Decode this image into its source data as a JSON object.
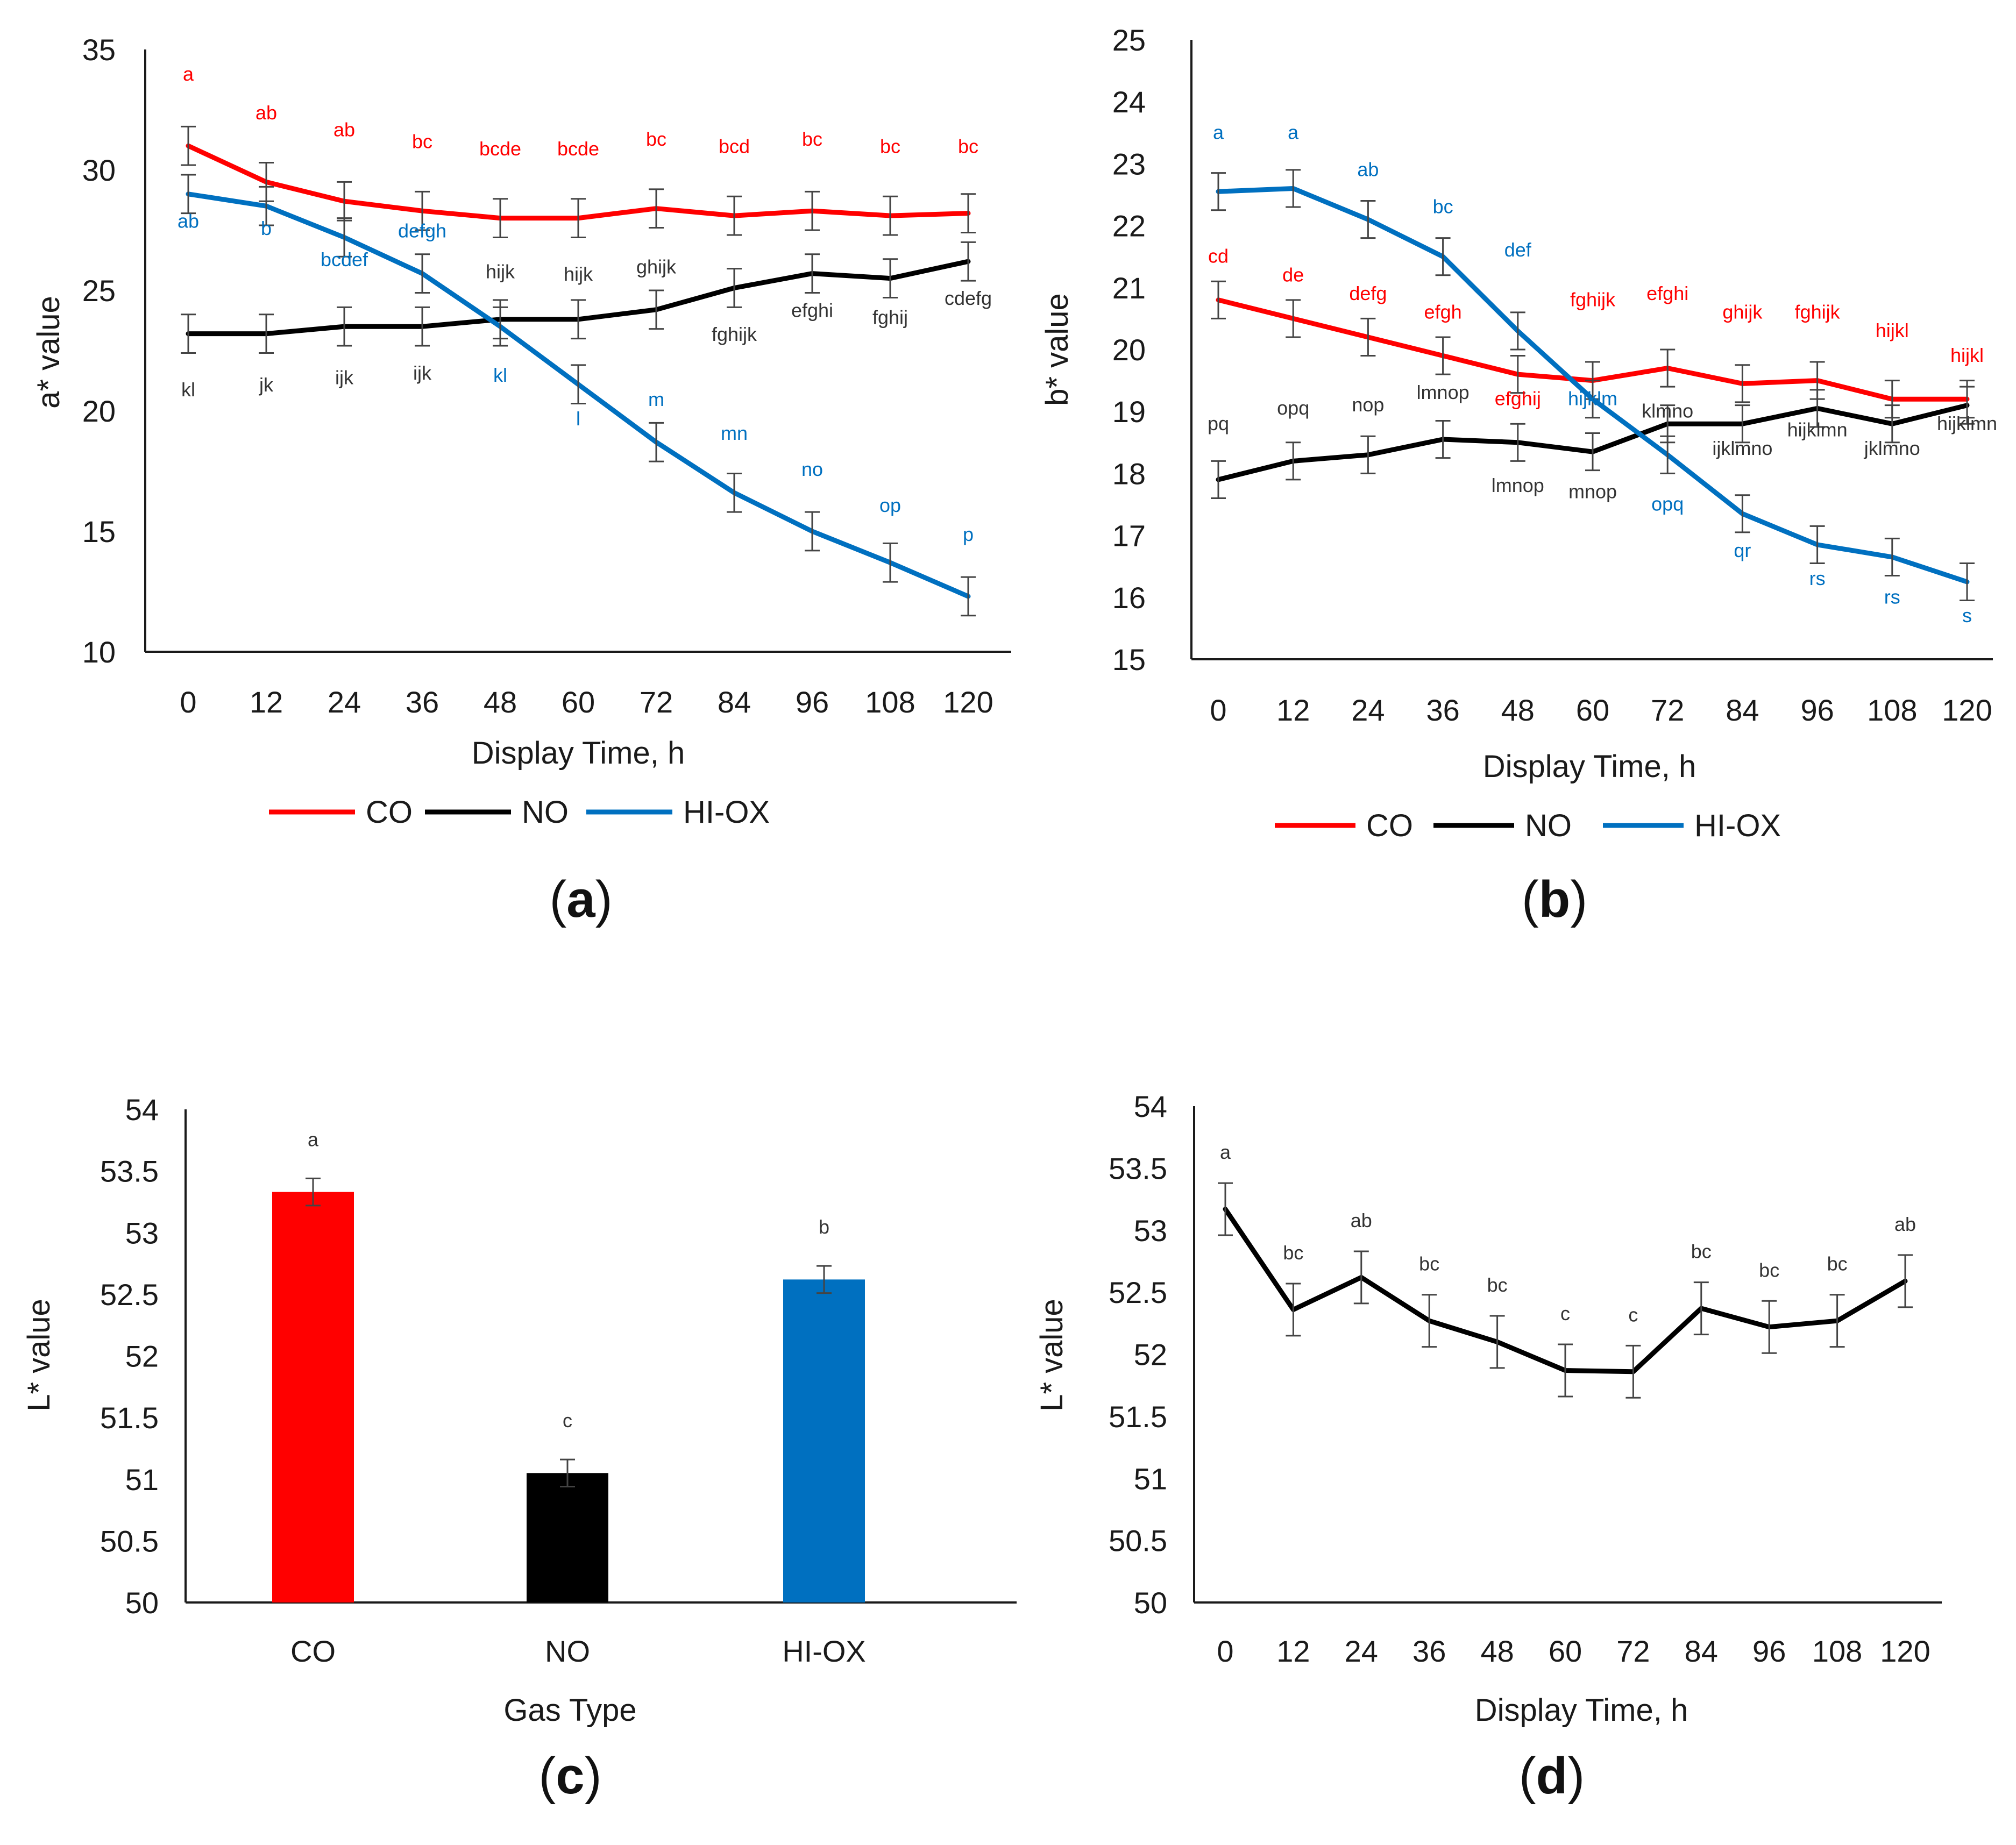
{
  "colors": {
    "CO": "#ff0000",
    "NO": "#000000",
    "HI-OX": "#0070c0",
    "axis": "#1a1a1a"
  },
  "chart_data": [
    {
      "id": "a",
      "panel_label": "(a)",
      "type": "line",
      "ylabel": "a* value",
      "xlabel": "Display Time, h",
      "ylim": [
        10,
        35
      ],
      "yticks": [
        10,
        15,
        20,
        25,
        30,
        35
      ],
      "x": [
        0,
        12,
        24,
        36,
        48,
        60,
        72,
        84,
        96,
        108,
        120
      ],
      "legend": [
        "CO",
        "NO",
        "HI-OX"
      ],
      "series": [
        {
          "name": "CO",
          "values": [
            31.0,
            29.5,
            28.7,
            28.3,
            28.0,
            28.0,
            28.4,
            28.1,
            28.3,
            28.1,
            28.2
          ],
          "err": 0.8,
          "letters": [
            "a",
            "ab",
            "ab",
            "bc",
            "bcde",
            "bcde",
            "bc",
            "bcd",
            "bc",
            "bc",
            "bc"
          ],
          "letter_y": [
            33.7,
            32.1,
            31.4,
            30.9,
            30.6,
            30.6,
            31.0,
            30.7,
            31.0,
            30.7,
            30.7
          ]
        },
        {
          "name": "NO",
          "values": [
            23.2,
            23.2,
            23.5,
            23.5,
            23.8,
            23.8,
            24.2,
            25.1,
            25.7,
            25.5,
            26.2
          ],
          "err": 0.8,
          "letters": [
            "kl",
            "jk",
            "ijk",
            "ijk",
            "hijk",
            "hijk",
            "ghijk",
            "fghijk",
            "efghi",
            "fghij",
            "cdefg"
          ],
          "letter_y": [
            20.6,
            20.8,
            21.1,
            21.3,
            25.5,
            25.4,
            25.7,
            22.9,
            23.9,
            23.6,
            24.4
          ]
        },
        {
          "name": "HI-OX",
          "values": [
            29.0,
            28.5,
            27.2,
            25.7,
            23.5,
            21.1,
            18.7,
            16.6,
            15.0,
            13.7,
            12.3
          ],
          "err": 0.8,
          "letters": [
            "ab",
            "b",
            "bcdef",
            "defgh",
            "kl",
            "l",
            "m",
            "mn",
            "no",
            "op",
            "p"
          ],
          "letter_y": [
            27.6,
            27.3,
            26.0,
            27.2,
            21.2,
            19.4,
            20.2,
            18.8,
            17.3,
            15.8,
            14.6
          ]
        }
      ]
    },
    {
      "id": "b",
      "panel_label": "(b)",
      "type": "line",
      "ylabel": "b* value",
      "xlabel": "Display Time, h",
      "ylim": [
        15,
        25
      ],
      "yticks": [
        15,
        16,
        17,
        18,
        19,
        20,
        21,
        22,
        23,
        24,
        25
      ],
      "x": [
        0,
        12,
        24,
        36,
        48,
        60,
        72,
        84,
        96,
        108,
        120
      ],
      "legend": [
        "CO",
        "NO",
        "HI-OX"
      ],
      "series": [
        {
          "name": "CO",
          "values": [
            20.8,
            20.5,
            20.2,
            19.9,
            19.6,
            19.5,
            19.7,
            19.45,
            19.5,
            19.2,
            19.2
          ],
          "err": 0.3,
          "letters": [
            "cd",
            "de",
            "defg",
            "efgh",
            "efghij",
            "fghijk",
            "efghi",
            "ghijk",
            "fghijk",
            "hijkl",
            "hijkl"
          ],
          "letter_y": [
            21.4,
            21.1,
            20.8,
            20.5,
            19.1,
            20.7,
            20.8,
            20.5,
            20.5,
            20.2,
            19.8
          ]
        },
        {
          "name": "NO",
          "values": [
            17.9,
            18.2,
            18.3,
            18.55,
            18.5,
            18.35,
            18.8,
            18.8,
            19.05,
            18.8,
            19.1
          ],
          "err": 0.3,
          "letters": [
            "pq",
            "opq",
            "nop",
            "lmnop",
            "lmnop",
            "mnop",
            "klmno",
            "ijklmno",
            "hijklmn",
            "jklmno",
            "hijklmn"
          ],
          "letter_y": [
            18.7,
            18.95,
            19.0,
            19.2,
            17.7,
            17.6,
            18.9,
            18.3,
            18.6,
            18.3,
            18.7
          ]
        },
        {
          "name": "HI-OX",
          "values": [
            22.55,
            22.6,
            22.1,
            21.5,
            20.3,
            19.2,
            18.3,
            17.35,
            16.85,
            16.65,
            16.25
          ],
          "err": 0.3,
          "letters": [
            "a",
            "a",
            "ab",
            "bc",
            "def",
            "hijklm",
            "opq",
            "qr",
            "rs",
            "rs",
            "s"
          ],
          "letter_y": [
            23.4,
            23.4,
            22.8,
            22.2,
            21.5,
            19.1,
            17.4,
            16.65,
            16.2,
            15.9,
            15.6
          ]
        }
      ]
    },
    {
      "id": "c",
      "panel_label": "(c)",
      "type": "bar",
      "ylabel": "L* value",
      "xlabel": "Gas Type",
      "ylim": [
        50,
        54
      ],
      "yticks": [
        "50",
        "50.5",
        "51",
        "51.5",
        "52",
        "52.5",
        "53",
        "53.5",
        "54"
      ],
      "categories": [
        "CO",
        "NO",
        "HI-OX"
      ],
      "values": [
        53.33,
        51.05,
        52.62
      ],
      "err": [
        0.11,
        0.11,
        0.11
      ],
      "letters": [
        "a",
        "c",
        "b"
      ]
    },
    {
      "id": "d",
      "panel_label": "(d)",
      "type": "line",
      "ylabel": "L* value",
      "xlabel": "Display Time, h",
      "ylim": [
        50,
        54
      ],
      "yticks": [
        "50",
        "50.5",
        "51",
        "51.5",
        "52",
        "52.5",
        "53",
        "53.5",
        "54"
      ],
      "x": [
        0,
        12,
        24,
        36,
        48,
        60,
        72,
        84,
        96,
        108,
        120
      ],
      "series": [
        {
          "name": "L*",
          "values": [
            53.17,
            52.36,
            52.62,
            52.27,
            52.1,
            51.87,
            51.86,
            52.37,
            52.22,
            52.27,
            52.59
          ],
          "err": 0.21,
          "letters": [
            "a",
            "bc",
            "ab",
            "bc",
            "bc",
            "c",
            "c",
            "bc",
            "bc",
            "bc",
            "ab"
          ]
        }
      ]
    }
  ]
}
